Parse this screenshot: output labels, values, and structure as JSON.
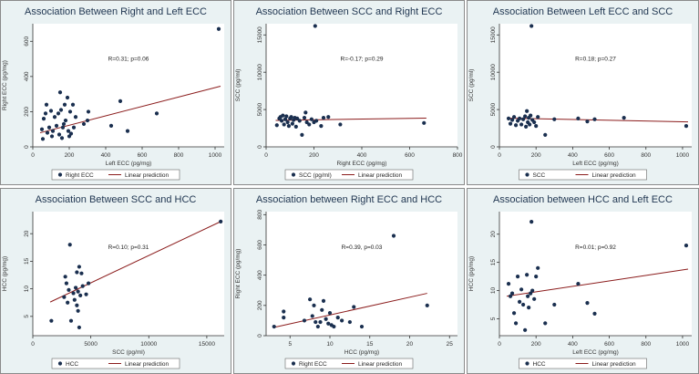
{
  "colors": {
    "outer_bg": "#eaf2f3",
    "plot_bg": "#ffffff",
    "point": "#1a2f4f",
    "line": "#8b1c1c",
    "title": "#1f3550",
    "axis": "#333333",
    "panel_border": "#8a8a8a"
  },
  "chart_data": [
    {
      "type": "scatter",
      "title": "Association Between Right and Left ECC",
      "xlabel": "Left ECC (pg/mg)",
      "ylabel": "Right ECC (pg/mg)",
      "xlim": [
        0,
        1050
      ],
      "ylim": [
        0,
        700
      ],
      "xticks": [
        0,
        200,
        400,
        600,
        800,
        1000
      ],
      "yticks": [
        0,
        200,
        400,
        600
      ],
      "xtick_labels": [
        "0",
        "200",
        "400",
        "600",
        "800",
        "1000"
      ],
      "ytick_labels": [
        "0",
        "200",
        "400",
        "600"
      ],
      "annotation": "R=0.31; p=0.06",
      "legend": [
        "Right ECC",
        "Linear prediction"
      ],
      "points": [
        [
          50,
          100
        ],
        [
          55,
          45
        ],
        [
          60,
          160
        ],
        [
          70,
          190
        ],
        [
          75,
          240
        ],
        [
          80,
          80
        ],
        [
          90,
          110
        ],
        [
          100,
          205
        ],
        [
          105,
          60
        ],
        [
          110,
          90
        ],
        [
          120,
          170
        ],
        [
          130,
          120
        ],
        [
          140,
          190
        ],
        [
          145,
          70
        ],
        [
          150,
          310
        ],
        [
          155,
          210
        ],
        [
          160,
          50
        ],
        [
          165,
          110
        ],
        [
          170,
          130
        ],
        [
          175,
          240
        ],
        [
          180,
          150
        ],
        [
          190,
          280
        ],
        [
          195,
          90
        ],
        [
          200,
          60
        ],
        [
          205,
          200
        ],
        [
          210,
          75
        ],
        [
          220,
          240
        ],
        [
          225,
          110
        ],
        [
          235,
          170
        ],
        [
          280,
          130
        ],
        [
          300,
          150
        ],
        [
          305,
          200
        ],
        [
          430,
          120
        ],
        [
          480,
          260
        ],
        [
          520,
          90
        ],
        [
          680,
          190
        ],
        [
          1020,
          670
        ]
      ],
      "fit": [
        [
          40,
          80
        ],
        [
          1030,
          345
        ]
      ]
    },
    {
      "type": "scatter",
      "title": "Association Between SCC and Right ECC",
      "xlabel": "Right ECC (pg/mg)",
      "ylabel": "SCC (pg/ml)",
      "xlim": [
        0,
        800
      ],
      "ylim": [
        0,
        16500
      ],
      "xticks": [
        0,
        200,
        400,
        600,
        800
      ],
      "yticks": [
        0,
        5000,
        10000,
        15000
      ],
      "xtick_labels": [
        "0",
        "200",
        "400",
        "600",
        "800"
      ],
      "ytick_labels": [
        "0",
        "5000",
        "10000",
        "15000"
      ],
      "annotation": "R=-0.17; p=0.29",
      "legend": [
        "SCC (pg/ml)",
        "Linear prediction"
      ],
      "points": [
        [
          45,
          2900
        ],
        [
          55,
          3800
        ],
        [
          60,
          4000
        ],
        [
          65,
          3500
        ],
        [
          70,
          4200
        ],
        [
          75,
          3000
        ],
        [
          80,
          3700
        ],
        [
          85,
          4100
        ],
        [
          90,
          3300
        ],
        [
          95,
          2800
        ],
        [
          100,
          3800
        ],
        [
          105,
          4000
        ],
        [
          110,
          3100
        ],
        [
          115,
          3600
        ],
        [
          120,
          3900
        ],
        [
          125,
          2700
        ],
        [
          130,
          3800
        ],
        [
          140,
          3500
        ],
        [
          150,
          1600
        ],
        [
          160,
          3900
        ],
        [
          165,
          4600
        ],
        [
          170,
          3300
        ],
        [
          180,
          3000
        ],
        [
          190,
          3700
        ],
        [
          200,
          3300
        ],
        [
          205,
          16200
        ],
        [
          210,
          3500
        ],
        [
          230,
          2800
        ],
        [
          240,
          3900
        ],
        [
          260,
          4000
        ],
        [
          310,
          3000
        ],
        [
          660,
          3200
        ]
      ],
      "fit": [
        [
          40,
          3550
        ],
        [
          670,
          3850
        ]
      ]
    },
    {
      "type": "scatter",
      "title": "Association Between Left ECC and SCC",
      "xlabel": "Left ECC (pg/mg)",
      "ylabel": "SCC (pg/ml)",
      "xlim": [
        0,
        1050
      ],
      "ylim": [
        0,
        16500
      ],
      "xticks": [
        0,
        200,
        400,
        600,
        800,
        1000
      ],
      "yticks": [
        0,
        5000,
        10000,
        15000
      ],
      "xtick_labels": [
        "0",
        "200",
        "400",
        "600",
        "800",
        "1000"
      ],
      "ytick_labels": [
        "0",
        "5000",
        "10000",
        "15000"
      ],
      "annotation": "R=0.18; p=0.27",
      "legend": [
        "SCC",
        "Linear prediction"
      ],
      "points": [
        [
          50,
          3800
        ],
        [
          60,
          3100
        ],
        [
          70,
          3600
        ],
        [
          80,
          4000
        ],
        [
          90,
          2900
        ],
        [
          100,
          3500
        ],
        [
          110,
          3800
        ],
        [
          120,
          3000
        ],
        [
          130,
          3700
        ],
        [
          140,
          4100
        ],
        [
          145,
          2700
        ],
        [
          150,
          4800
        ],
        [
          155,
          3300
        ],
        [
          160,
          3900
        ],
        [
          165,
          3000
        ],
        [
          170,
          4200
        ],
        [
          175,
          16200
        ],
        [
          180,
          3600
        ],
        [
          190,
          3300
        ],
        [
          200,
          2800
        ],
        [
          210,
          4000
        ],
        [
          250,
          1600
        ],
        [
          300,
          3700
        ],
        [
          430,
          3800
        ],
        [
          480,
          3400
        ],
        [
          520,
          3700
        ],
        [
          680,
          3900
        ],
        [
          1020,
          2800
        ]
      ],
      "fit": [
        [
          40,
          3850
        ],
        [
          1030,
          3350
        ]
      ]
    },
    {
      "type": "scatter",
      "title": "Association Between SCC and HCC",
      "xlabel": "SCC (pg/ml)",
      "ylabel": "HCC (pg/mg)",
      "xlim": [
        0,
        16500
      ],
      "ylim": [
        1.5,
        24
      ],
      "xticks": [
        0,
        5000,
        10000,
        15000
      ],
      "yticks": [
        5,
        10,
        15,
        20
      ],
      "xtick_labels": [
        "0",
        "5000",
        "10000",
        "15000"
      ],
      "ytick_labels": [
        "5",
        "10",
        "15",
        "20"
      ],
      "annotation": "R=0.10; p=0.31",
      "legend": [
        "HCC",
        "Linear prediction"
      ],
      "points": [
        [
          1600,
          4.2
        ],
        [
          2700,
          8.5
        ],
        [
          2800,
          12.2
        ],
        [
          2900,
          11.0
        ],
        [
          3000,
          7.5
        ],
        [
          3100,
          9.8
        ],
        [
          3200,
          18.0
        ],
        [
          3300,
          4.2
        ],
        [
          3500,
          9.2
        ],
        [
          3600,
          8.0
        ],
        [
          3700,
          10.2
        ],
        [
          3800,
          13.0
        ],
        [
          3800,
          7.0
        ],
        [
          3900,
          9.5
        ],
        [
          3900,
          6.0
        ],
        [
          4000,
          14.0
        ],
        [
          4000,
          3.0
        ],
        [
          4100,
          8.8
        ],
        [
          4200,
          12.8
        ],
        [
          4300,
          10.5
        ],
        [
          4600,
          9.0
        ],
        [
          4800,
          11.0
        ],
        [
          16200,
          22.2
        ]
      ],
      "fit": [
        [
          1500,
          7.6
        ],
        [
          16200,
          22.2
        ]
      ]
    },
    {
      "type": "scatter",
      "title": "Association between Right ECC and HCC",
      "xlabel": "HCC (pg/mg)",
      "ylabel": "Right ECC (pg/mg)",
      "xlim": [
        2,
        26
      ],
      "ylim": [
        0,
        820
      ],
      "xticks": [
        5,
        10,
        15,
        20,
        25
      ],
      "yticks": [
        0,
        200,
        400,
        600,
        800
      ],
      "xtick_labels": [
        "5",
        "10",
        "15",
        "20",
        "25"
      ],
      "ytick_labels": [
        "0",
        "200",
        "400",
        "600",
        "800"
      ],
      "annotation": "R=0.39, p=0.03",
      "legend": [
        "Right ECC",
        "Linear prediction"
      ],
      "points": [
        [
          3.0,
          60
        ],
        [
          4.2,
          160
        ],
        [
          4.2,
          120
        ],
        [
          6.8,
          100
        ],
        [
          7.5,
          240
        ],
        [
          7.8,
          130
        ],
        [
          8.0,
          200
        ],
        [
          8.2,
          90
        ],
        [
          8.5,
          60
        ],
        [
          8.8,
          90
        ],
        [
          9.0,
          170
        ],
        [
          9.2,
          230
        ],
        [
          9.5,
          110
        ],
        [
          9.8,
          80
        ],
        [
          10.0,
          150
        ],
        [
          10.2,
          70
        ],
        [
          10.5,
          60
        ],
        [
          11.0,
          120
        ],
        [
          11.5,
          100
        ],
        [
          12.5,
          90
        ],
        [
          13.0,
          190
        ],
        [
          14.0,
          60
        ],
        [
          18.0,
          660
        ],
        [
          22.2,
          200
        ]
      ],
      "fit": [
        [
          3.0,
          55
        ],
        [
          22.2,
          280
        ]
      ]
    },
    {
      "type": "scatter",
      "title": "Association between HCC and Left ECC",
      "xlabel": "Left ECC (pg/mg)",
      "ylabel": "HCC (pg/mg)",
      "xlim": [
        0,
        1050
      ],
      "ylim": [
        2,
        24
      ],
      "xticks": [
        0,
        200,
        400,
        600,
        800,
        1000
      ],
      "yticks": [
        5,
        10,
        15,
        20
      ],
      "xtick_labels": [
        "0",
        "200",
        "400",
        "600",
        "800",
        "1000"
      ],
      "ytick_labels": [
        "5",
        "10",
        "15",
        "20"
      ],
      "annotation": "R=0.01; p=0.92",
      "legend": [
        "HCC",
        "Linear prediction"
      ],
      "points": [
        [
          50,
          11.2
        ],
        [
          60,
          9.0
        ],
        [
          70,
          9.5
        ],
        [
          80,
          6.0
        ],
        [
          90,
          4.2
        ],
        [
          100,
          12.5
        ],
        [
          110,
          8.0
        ],
        [
          120,
          10.2
        ],
        [
          130,
          7.5
        ],
        [
          140,
          3.0
        ],
        [
          150,
          12.8
        ],
        [
          155,
          9.0
        ],
        [
          160,
          7.0
        ],
        [
          170,
          9.5
        ],
        [
          175,
          22.2
        ],
        [
          180,
          10.0
        ],
        [
          190,
          8.5
        ],
        [
          200,
          12.5
        ],
        [
          210,
          14.0
        ],
        [
          250,
          4.2
        ],
        [
          300,
          7.5
        ],
        [
          430,
          11.2
        ],
        [
          480,
          7.8
        ],
        [
          520,
          5.9
        ],
        [
          1020,
          18.0
        ]
      ],
      "fit": [
        [
          40,
          9.0
        ],
        [
          1030,
          13.8
        ]
      ]
    }
  ]
}
